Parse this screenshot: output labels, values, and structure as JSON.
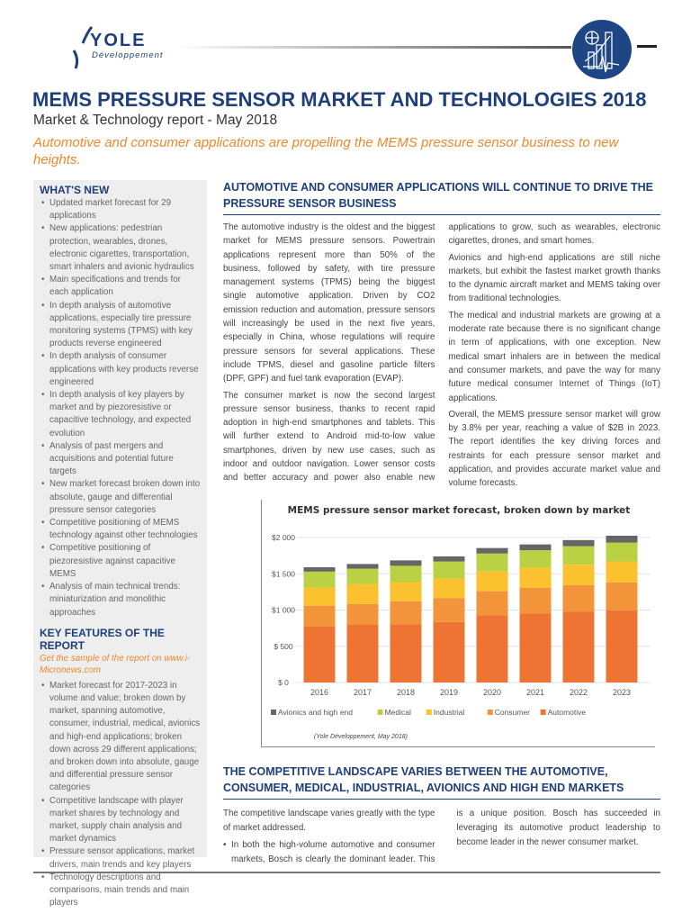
{
  "header": {
    "logo_brand": "YOLE",
    "logo_sub": "Développement",
    "badge_icon": "growth-chart-icon",
    "title": "MEMS PRESSURE SENSOR MARKET AND TECHNOLOGIES 2018",
    "subtitle": "Market & Technology report - May 2018",
    "tagline": "Automotive and consumer applications are propelling the MEMS pressure sensor business to new heights."
  },
  "sidebar": {
    "whats_new_title": "WHAT'S NEW",
    "whats_new": [
      "Updated market forecast for 29 applications",
      "New applications: pedestrian protection, wearables, drones, electronic cigarettes, transportation, smart inhalers and avionic hydraulics",
      "Main specifications and trends for each application",
      "In depth analysis of automotive applications, especially tire pressure monitoring systems (TPMS) with key products reverse engineered",
      "In depth analysis of consumer applications with key products reverse engineered",
      "In depth analysis of key players by market and by piezoresistive or capacitive technology, and expected evolution",
      "Analysis of past mergers and acquisitions and potential future targets",
      "New market forecast broken down into absolute, gauge and differential pressure sensor categories",
      "Competitive positioning of MEMS technology against other technologies",
      "Competitive positioning of piezoresistive against capacitive MEMS",
      "Analysis of main technical trends: miniaturization and monolithic approaches"
    ],
    "key_features_title": "KEY FEATURES OF THE REPORT",
    "sample_link": "Get the sample of the report on www.i-Micronews.com",
    "key_features": [
      "Market forecast for 2017-2023 in volume and value; broken down by market, spanning automotive, consumer, industrial, medical, avionics and high-end applications; broken down across 29 different applications; and broken down into absolute, gauge and differential pressure sensor categories",
      "Competitive landscape with player market shares by technology and market, supply chain analysis and market dynamics",
      "Pressure sensor applications, market drivers, main trends and key players",
      "Technology descriptions and comparisons, main trends and main players"
    ]
  },
  "section1": {
    "heading": "AUTOMOTIVE AND CONSUMER APPLICATIONS WILL CONTINUE TO DRIVE THE PRESSURE SENSOR BUSINESS",
    "paragraphs": [
      "The automotive industry is the oldest and the biggest market for MEMS pressure sensors. Powertrain applications represent more than 50% of the business, followed by safety, with tire pressure management systems (TPMS) being the biggest single automotive application. Driven by CO2 emission reduction and automation, pressure sensors will increasingly be used in the next five years, especially in China, whose regulations will require pressure sensors for several applications. These include TPMS, diesel and gasoline particle filters (DPF, GPF) and fuel tank evaporation (EVAP).",
      "The consumer market is now the second largest pressure sensor business, thanks to recent rapid adoption in high-end smartphones and tablets. This will further extend to Android mid-to-low value smartphones, driven by new use cases, such as indoor and outdoor navigation. Lower sensor costs and better accuracy and power also enable new applications to grow, such as wearables, electronic cigarettes, drones, and smart homes.",
      "Avionics and high-end applications are still niche markets, but exhibit the fastest market growth thanks to the dynamic aircraft market and MEMS taking over from traditional technologies.",
      "The medical and industrial markets are growing at a moderate rate because there is no significant change in term of applications, with one exception. New medical smart inhalers are in between the medical and consumer markets, and pave the way for many future medical consumer Internet of Things (IoT) applications.",
      "Overall, the MEMS pressure sensor market will grow by 3.8% per year, reaching a value of $2B in 2023. The report identifies the key driving forces and restraints for each pressure sensor market and application, and provides accurate market value and volume forecasts."
    ]
  },
  "chart_data": {
    "type": "bar",
    "stacked": true,
    "title": "MEMS pressure sensor market forecast, broken down by market",
    "source": "(Yole Développement, May 2018)",
    "categories": [
      "2016",
      "2017",
      "2018",
      "2019",
      "2020",
      "2021",
      "2022",
      "2023"
    ],
    "yticks": [
      "$ 0",
      "$ 500",
      "$1 000",
      "$1 500",
      "$2 000"
    ],
    "ylim": [
      0,
      2000
    ],
    "grid": true,
    "legend": "bottom",
    "series": [
      {
        "name": "Automotive",
        "color": "#ee7433",
        "values": [
          770,
          795,
          805,
          835,
          930,
          955,
          980,
          995
        ]
      },
      {
        "name": "Consumer",
        "color": "#f29439",
        "values": [
          290,
          290,
          315,
          330,
          330,
          350,
          365,
          385
        ]
      },
      {
        "name": "Industrial",
        "color": "#fcc12f",
        "values": [
          250,
          270,
          265,
          270,
          275,
          280,
          280,
          290
        ]
      },
      {
        "name": "Medical",
        "color": "#b9d142",
        "values": [
          220,
          215,
          225,
          235,
          245,
          240,
          255,
          260
        ]
      },
      {
        "name": "Avionics and high end",
        "color": "#666666",
        "values": [
          60,
          65,
          75,
          70,
          75,
          80,
          85,
          95
        ]
      }
    ],
    "legend_order": [
      "Avionics and high end",
      "Medical",
      "Industrial",
      "Consumer",
      "Automotive"
    ]
  },
  "section2": {
    "heading": "THE COMPETITIVE LANDSCAPE VARIES BETWEEN THE AUTOMOTIVE, CONSUMER, MEDICAL, INDUSTRIAL, AVIONICS AND HIGH END MARKETS",
    "intro": "The competitive landscape varies greatly with the type of market addressed.",
    "bullet": "In both the high-volume automotive and consumer markets, Bosch is clearly the dominant leader. This is a unique position. Bosch has succeeded in leveraging its automotive product leadership to become leader in the newer consumer market."
  }
}
